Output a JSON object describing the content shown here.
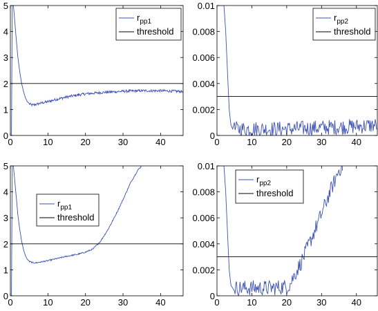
{
  "chart_data": [
    {
      "type": "line",
      "panel": "top-left",
      "xlim": [
        0,
        46
      ],
      "ylim": [
        0,
        5
      ],
      "xticks": [
        0,
        10,
        20,
        30,
        40
      ],
      "xtick_labels": [
        "0",
        "10",
        "20",
        "30",
        "40"
      ],
      "yticks": [
        0,
        1,
        2,
        3,
        4,
        5
      ],
      "ytick_labels": [
        "0",
        "1",
        "2",
        "3",
        "4",
        "5"
      ],
      "grid": false,
      "legend_position": "top-right",
      "series": [
        {
          "legend_main": "r",
          "legend_sub": "pp1",
          "color": "#3a4fb5",
          "x": [
            0.3,
            0.5,
            0.8,
            1,
            1.5,
            2,
            2.5,
            3,
            3.5,
            4,
            4.5,
            5,
            5.5,
            6,
            7,
            8,
            10,
            12,
            15,
            18,
            20,
            25,
            30,
            35,
            40,
            44,
            46
          ],
          "y": [
            0,
            5,
            5,
            4.7,
            3.8,
            3.0,
            2.45,
            2.0,
            1.7,
            1.45,
            1.3,
            1.22,
            1.18,
            1.17,
            1.2,
            1.24,
            1.3,
            1.38,
            1.48,
            1.56,
            1.6,
            1.66,
            1.7,
            1.72,
            1.72,
            1.7,
            1.69
          ],
          "noise": 0.05
        },
        {
          "name": "threshold",
          "color": "#000000",
          "x": [
            0,
            46
          ],
          "y": [
            2,
            2
          ]
        }
      ]
    },
    {
      "type": "line",
      "panel": "top-right",
      "xlim": [
        0,
        46
      ],
      "ylim": [
        0,
        0.01
      ],
      "xticks": [
        0,
        10,
        20,
        30,
        40
      ],
      "xtick_labels": [
        "0",
        "10",
        "20",
        "30",
        "40"
      ],
      "yticks": [
        0,
        0.002,
        0.004,
        0.006,
        0.008,
        0.01
      ],
      "ytick_labels": [
        "0",
        "0.002",
        "0.004",
        "0.006",
        "0.008",
        "0.01"
      ],
      "grid": false,
      "legend_position": "top-right",
      "series": [
        {
          "legend_main": "r",
          "legend_sub": "pp2",
          "color": "#3a4fb5",
          "x": [
            1,
            2,
            2.5,
            3,
            3.5,
            4,
            4.5,
            5,
            10,
            20,
            30,
            40,
            46
          ],
          "y": [
            0.01,
            0.01,
            0.008,
            0.005,
            0.002,
            0.0008,
            0.0005,
            0.0005,
            0.0005,
            0.0005,
            0.0006,
            0.0007,
            0.0008
          ],
          "noise": 0.0006
        },
        {
          "name": "threshold",
          "color": "#000000",
          "x": [
            0,
            46
          ],
          "y": [
            0.003,
            0.003
          ]
        }
      ]
    },
    {
      "type": "line",
      "panel": "bottom-left",
      "xlim": [
        0,
        46
      ],
      "ylim": [
        0,
        5
      ],
      "xticks": [
        0,
        10,
        20,
        30,
        40
      ],
      "xtick_labels": [
        "0",
        "10",
        "20",
        "30",
        "40"
      ],
      "yticks": [
        0,
        1,
        2,
        3,
        4,
        5
      ],
      "ytick_labels": [
        "0",
        "1",
        "2",
        "3",
        "4",
        "5"
      ],
      "grid": false,
      "legend_position": "middle-left",
      "series": [
        {
          "legend_main": "r",
          "legend_sub": "pp1",
          "color": "#3a4fb5",
          "x": [
            0.3,
            0.5,
            0.8,
            1,
            1.5,
            2,
            2.5,
            3,
            3.5,
            4,
            4.5,
            5,
            6,
            7,
            8,
            10,
            12,
            15,
            18,
            20,
            22,
            24,
            26,
            28,
            30,
            32,
            34,
            35
          ],
          "y": [
            0,
            5,
            5,
            4.7,
            3.9,
            3.1,
            2.55,
            2.1,
            1.78,
            1.55,
            1.4,
            1.32,
            1.27,
            1.27,
            1.3,
            1.35,
            1.42,
            1.52,
            1.6,
            1.68,
            1.8,
            2.1,
            2.55,
            3.1,
            3.7,
            4.35,
            4.85,
            5.0
          ],
          "noise": 0.025
        },
        {
          "name": "threshold",
          "color": "#000000",
          "x": [
            0,
            46
          ],
          "y": [
            2,
            2
          ]
        }
      ]
    },
    {
      "type": "line",
      "panel": "bottom-right",
      "xlim": [
        0,
        46
      ],
      "ylim": [
        0,
        0.01
      ],
      "xticks": [
        0,
        10,
        20,
        30,
        40
      ],
      "xtick_labels": [
        "0",
        "10",
        "20",
        "30",
        "40"
      ],
      "yticks": [
        0,
        0.002,
        0.004,
        0.006,
        0.008,
        0.01
      ],
      "ytick_labels": [
        "0",
        "0.002",
        "0.004",
        "0.006",
        "0.008",
        "0.01"
      ],
      "grid": false,
      "legend_position": "top-left",
      "series": [
        {
          "legend_main": "r",
          "legend_sub": "pp2",
          "color": "#3a4fb5",
          "x": [
            1,
            2,
            2.5,
            3,
            3.5,
            4,
            4.5,
            5,
            10,
            15,
            20,
            21,
            22,
            24,
            26,
            28,
            30,
            32,
            34,
            35,
            36
          ],
          "y": [
            0.01,
            0.01,
            0.008,
            0.005,
            0.002,
            0.0008,
            0.0006,
            0.0006,
            0.0006,
            0.0006,
            0.0007,
            0.0009,
            0.0015,
            0.0025,
            0.0037,
            0.005,
            0.0063,
            0.0077,
            0.009,
            0.0097,
            0.01
          ],
          "noise": 0.0006
        },
        {
          "name": "threshold",
          "color": "#000000",
          "x": [
            0,
            46
          ],
          "y": [
            0.003,
            0.003
          ]
        }
      ]
    }
  ]
}
